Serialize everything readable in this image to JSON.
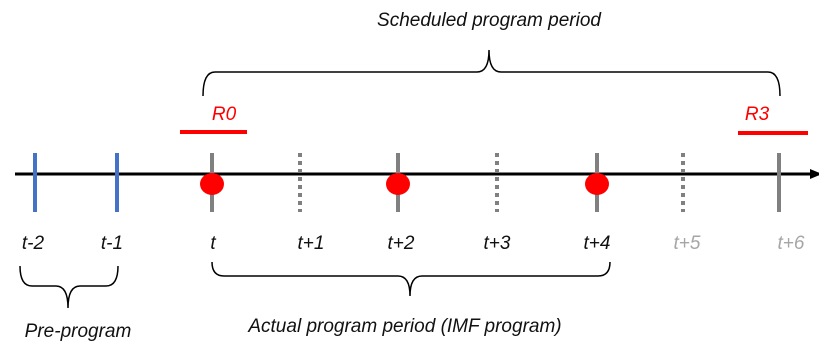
{
  "timeline": {
    "ticks": [
      {
        "id": "t-minus-2",
        "label": "t-2",
        "style": "solid",
        "color": "#4472C4",
        "label_color": "#111111"
      },
      {
        "id": "t-minus-1",
        "label": "t-1",
        "style": "solid",
        "color": "#4472C4",
        "label_color": "#111111"
      },
      {
        "id": "t",
        "label": "t",
        "style": "solid",
        "color": "#808080",
        "label_color": "#111111",
        "dot": true
      },
      {
        "id": "t-plus-1",
        "label": "t+1",
        "style": "dotted",
        "color": "#808080",
        "label_color": "#111111"
      },
      {
        "id": "t-plus-2",
        "label": "t+2",
        "style": "solid",
        "color": "#808080",
        "label_color": "#111111",
        "dot": true
      },
      {
        "id": "t-plus-3",
        "label": "t+3",
        "style": "dotted",
        "color": "#808080",
        "label_color": "#111111"
      },
      {
        "id": "t-plus-4",
        "label": "t+4",
        "style": "solid",
        "color": "#808080",
        "label_color": "#111111",
        "dot": true
      },
      {
        "id": "t-plus-5",
        "label": "t+5",
        "style": "dotted",
        "color": "#808080",
        "label_color": "#A6A6A6"
      },
      {
        "id": "t-plus-6",
        "label": "t+6",
        "style": "solid",
        "color": "#808080",
        "label_color": "#A6A6A6"
      }
    ],
    "axis_color": "#000000",
    "dot_color": "#FF0000"
  },
  "markers": {
    "r0": {
      "label": "R0",
      "color": "#FF0000"
    },
    "r3": {
      "label": "R3",
      "color": "#FF0000"
    }
  },
  "brackets": {
    "scheduled": {
      "label": "Scheduled program period"
    },
    "actual": {
      "label": "Actual program period (IMF program)"
    },
    "pre": {
      "label": "Pre-program"
    }
  }
}
